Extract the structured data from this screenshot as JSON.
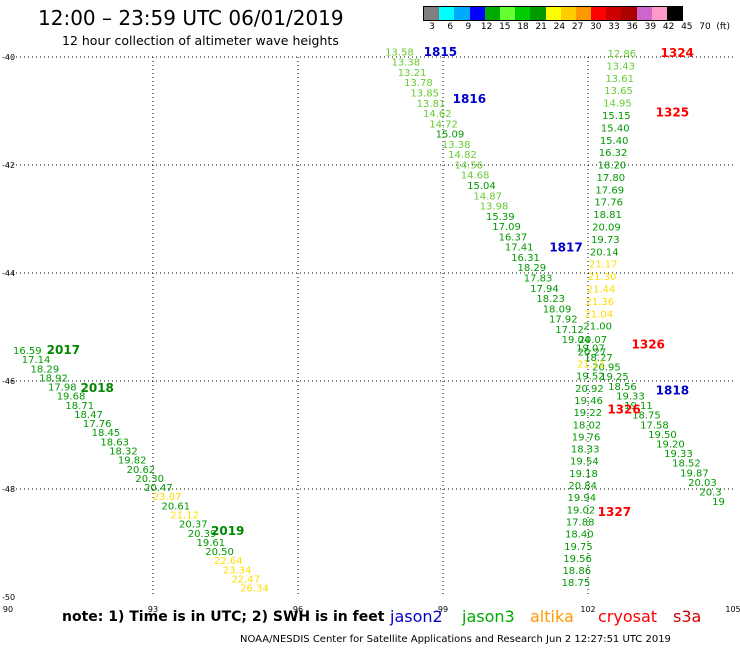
{
  "header": {
    "title": "12:00 – 23:59 UTC 06/01/2019",
    "subtitle": "12 hour collection of altimeter wave heights"
  },
  "colorbar": {
    "colors": [
      "#808080",
      "#00ffff",
      "#00aaff",
      "#0000ff",
      "#00aa00",
      "#66ff33",
      "#00cc00",
      "#009900",
      "#ffff00",
      "#ffcc00",
      "#ff9900",
      "#ff0000",
      "#cc0000",
      "#aa0000",
      "#cc66cc",
      "#ff99cc",
      "#000000"
    ],
    "labels": [
      "3",
      "6",
      "9",
      "12",
      "15",
      "18",
      "21",
      "24",
      "27",
      "30",
      "33",
      "36",
      "39",
      "42",
      "45",
      "70",
      "(ft)"
    ]
  },
  "axes": {
    "lat_ticks": [
      "-40",
      "-42",
      "-44",
      "-46",
      "-48",
      "-50"
    ],
    "lon_ticks": [
      "90",
      "93",
      "96",
      "99",
      "102",
      "105"
    ]
  },
  "note": "note:  1) Time is in UTC;  2) SWH is in feet",
  "legend": [
    {
      "label": "jason2",
      "color": "#0000cc"
    },
    {
      "label": "jason3",
      "color": "#00aa00"
    },
    {
      "label": "altika",
      "color": "#ff9900"
    },
    {
      "label": "cryosat",
      "color": "#ff0000"
    },
    {
      "label": "s3a",
      "color": "#cc0000"
    }
  ],
  "footer": "NOAA/NESDIS Center for Satellite Applications and Research   Jun  2 12:27:51 UTC 2019",
  "time_labels": [
    {
      "text": "1815",
      "lon": 98.6,
      "lat": -39.98,
      "color": "#0000cc"
    },
    {
      "text": "1816",
      "lon": 99.2,
      "lat": -40.85,
      "color": "#0000cc"
    },
    {
      "text": "1817",
      "lon": 101.2,
      "lat": -43.6,
      "color": "#0000cc"
    },
    {
      "text": "1818",
      "lon": 103.4,
      "lat": -46.25,
      "color": "#0000cc"
    },
    {
      "text": "1324",
      "lon": 103.5,
      "lat": -40.0,
      "color": "#ff0000"
    },
    {
      "text": "1325",
      "lon": 103.4,
      "lat": -41.1,
      "color": "#ff0000"
    },
    {
      "text": "1326",
      "lon": 102.9,
      "lat": -45.4,
      "color": "#ff0000"
    },
    {
      "text": "1326",
      "lon": 102.4,
      "lat": -46.6,
      "color": "#ff0000"
    },
    {
      "text": "1327",
      "lon": 102.2,
      "lat": -48.5,
      "color": "#ff0000"
    },
    {
      "text": "2017",
      "lon": 90.8,
      "lat": -45.5,
      "color": "#008800"
    },
    {
      "text": "2018",
      "lon": 91.5,
      "lat": -46.2,
      "color": "#008800"
    },
    {
      "text": "2019",
      "lon": 94.2,
      "lat": -48.85,
      "color": "#008800"
    }
  ],
  "tracks": [
    {
      "name": "jason2-descending",
      "values": [
        "13.58",
        "13.38",
        "13.21",
        "13.78",
        "13.85",
        "13.81",
        "14.62",
        "14.72",
        "15.09",
        "13.38",
        "14.82",
        "14.56",
        "14.68",
        "15.04",
        "14.87",
        "13.98",
        "15.39",
        "17.09",
        "16.37",
        "17.41",
        "16.31",
        "18.29",
        "17.83",
        "17.94",
        "18.23",
        "18.09",
        "17.92",
        "17.12",
        "19.04"
      ],
      "colors": [
        "#66cc33",
        "#66cc33",
        "#66cc33",
        "#66cc33",
        "#66cc33",
        "#66cc33",
        "#66cc33",
        "#66cc33",
        "#009900",
        "#66cc33",
        "#66cc33",
        "#66cc33",
        "#66cc33",
        "#009900",
        "#66cc33",
        "#66cc33",
        "#009900",
        "#009900",
        "#009900",
        "#009900",
        "#009900",
        "#009900",
        "#009900",
        "#009900",
        "#009900",
        "#009900",
        "#009900",
        "#009900",
        "#009900"
      ],
      "lon_start": 98.1,
      "lat_start": -39.97,
      "lon_end": 101.75,
      "lat_end": -45.3
    },
    {
      "name": "jason3-descending",
      "values": [
        "19.07",
        "18.27",
        "20.95",
        "19.25",
        "18.56",
        "19.33",
        "19.11",
        "18.75",
        "17.58",
        "19.50",
        "19.20",
        "19.33",
        "18.52",
        "19.87",
        "20.03",
        "20.3",
        "19"
      ],
      "colors": [
        "#009900",
        "#009900",
        "#009900",
        "#009900",
        "#009900",
        "#009900",
        "#009900",
        "#009900",
        "#009900",
        "#009900",
        "#009900",
        "#009900",
        "#009900",
        "#009900",
        "#009900",
        "#009900",
        "#009900"
      ],
      "lon_start": 102.05,
      "lat_start": -45.45,
      "lon_end": 104.7,
      "lat_end": -48.3
    },
    {
      "name": "cryosat-ascending-north",
      "values": [
        "12.86",
        "13.43",
        "13.61",
        "13.65",
        "14.95",
        "15.15",
        "15.40",
        "15.40",
        "16.32",
        "18.20",
        "17.80",
        "17.69",
        "17.76",
        "18.81",
        "20.09",
        "19.73",
        "20.14",
        "21.17",
        "21.30",
        "21.44",
        "21.36",
        "21.04",
        "21.00"
      ],
      "colors": [
        "#66cc33",
        "#66cc33",
        "#66cc33",
        "#66cc33",
        "#66cc33",
        "#009900",
        "#009900",
        "#009900",
        "#009900",
        "#009900",
        "#009900",
        "#009900",
        "#009900",
        "#009900",
        "#009900",
        "#009900",
        "#009900",
        "#ffdd00",
        "#ffdd00",
        "#ffdd00",
        "#ffdd00",
        "#ffdd00",
        "#009900"
      ],
      "lon_start": 102.7,
      "lat_start": -40.0,
      "lon_end": 102.2,
      "lat_end": -45.05
    },
    {
      "name": "cryosat-middle",
      "values": [
        "20.07",
        "20.27",
        "21.11",
        "19.52",
        "20.92",
        "19.46",
        "19.22",
        "18.02",
        "19.76",
        "18.33",
        "19.54",
        "19.18",
        "20.84",
        "19.94",
        "19.02",
        "17.88",
        "18.40",
        "19.75",
        "19.56",
        "18.86",
        "18.75"
      ],
      "colors": [
        "#009900",
        "#009900",
        "#ffdd00",
        "#009900",
        "#009900",
        "#009900",
        "#009900",
        "#009900",
        "#009900",
        "#009900",
        "#009900",
        "#009900",
        "#009900",
        "#009900",
        "#009900",
        "#009900",
        "#009900",
        "#009900",
        "#009900",
        "#009900",
        "#009900"
      ],
      "lon_start": 102.1,
      "lat_start": -45.3,
      "lon_end": 101.75,
      "lat_end": -49.8
    },
    {
      "name": "jason3-west",
      "values": [
        "16.59",
        "17.14",
        "18.29",
        "18.92",
        "17.98",
        "19.68",
        "18.71",
        "18.47",
        "17.76",
        "18.45",
        "18.63",
        "18.32",
        "19.82",
        "20.62",
        "20.30",
        "20.47",
        "23.07",
        "20.61",
        "21.12",
        "20.37",
        "20.39",
        "19.61",
        "20.50",
        "22.64",
        "23.34",
        "22.47",
        "26.34"
      ],
      "colors": [
        "#009900",
        "#009900",
        "#009900",
        "#009900",
        "#009900",
        "#009900",
        "#009900",
        "#009900",
        "#009900",
        "#009900",
        "#009900",
        "#009900",
        "#009900",
        "#009900",
        "#009900",
        "#009900",
        "#ffdd00",
        "#009900",
        "#ffdd00",
        "#009900",
        "#009900",
        "#009900",
        "#009900",
        "#ffdd00",
        "#ffdd00",
        "#ffdd00",
        "#ffdd00"
      ],
      "lon_start": 90.4,
      "lat_start": -45.5,
      "lon_end": 95.1,
      "lat_end": -49.9
    }
  ]
}
